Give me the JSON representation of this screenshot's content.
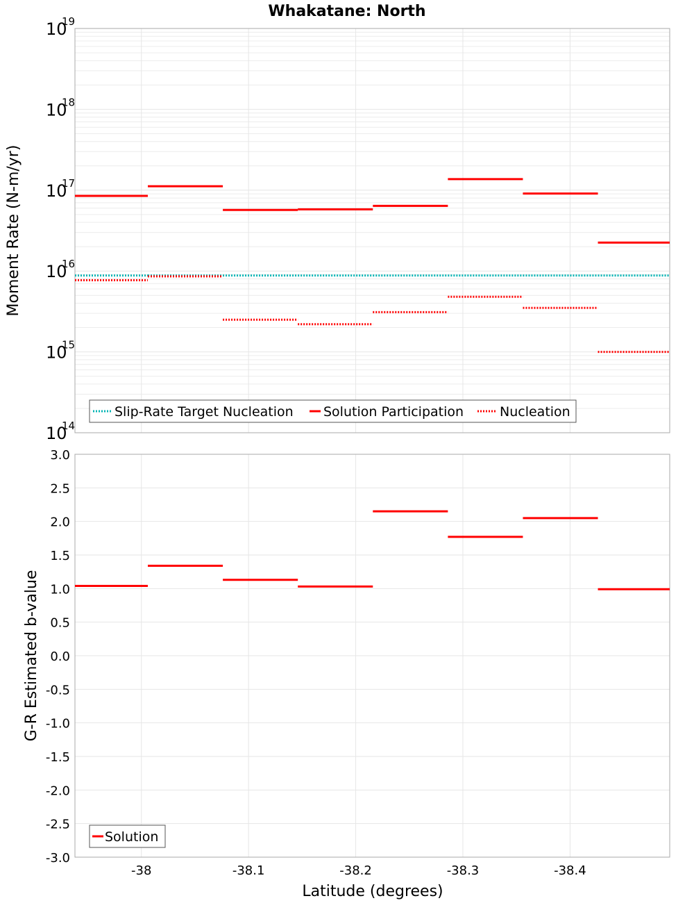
{
  "title": "Whakatane: North",
  "x_axis_label": "Latitude (degrees)",
  "colors": {
    "target": "#00b4b4",
    "solution": "#ff0000",
    "grid": "#e6e6e6",
    "frame": "#aaaaaa"
  },
  "chart_data": [
    {
      "type": "line",
      "panel": "top",
      "ylabel": "Moment Rate (N-m/yr)",
      "yscale": "log",
      "ylim": [
        100000000000000.0,
        1e+19
      ],
      "y_ticks": [
        {
          "value": 100000000000000.0,
          "base": "10",
          "exp": "14"
        },
        {
          "value": 1000000000000000.0,
          "base": "10",
          "exp": "15"
        },
        {
          "value": 1e+16,
          "base": "10",
          "exp": "16"
        },
        {
          "value": 1e+17,
          "base": "10",
          "exp": "17"
        },
        {
          "value": 1e+18,
          "base": "10",
          "exp": "18"
        },
        {
          "value": 1e+19,
          "base": "10",
          "exp": "19"
        }
      ],
      "xlim": [
        -37.938,
        -38.493
      ],
      "x_ticks": [
        "-38",
        "-38.1",
        "-38.2",
        "-38.3",
        "-38.4"
      ],
      "x_tick_values": [
        -38.0,
        -38.1,
        -38.2,
        -38.3,
        -38.4
      ],
      "grid": true,
      "legend_position": "bottom-left",
      "series": [
        {
          "name": "Slip-Rate Target Nucleation",
          "style": "dotted",
          "color": "#00b4b4",
          "segments": [
            {
              "x": [
                -37.938,
                -38.006
              ],
              "y": 8800000000000000.0
            },
            {
              "x": [
                -38.006,
                -38.076
              ],
              "y": 8800000000000000.0
            },
            {
              "x": [
                -38.076,
                -38.146
              ],
              "y": 8800000000000000.0
            },
            {
              "x": [
                -38.146,
                -38.216
              ],
              "y": 8800000000000000.0
            },
            {
              "x": [
                -38.216,
                -38.286
              ],
              "y": 8800000000000000.0
            },
            {
              "x": [
                -38.286,
                -38.356
              ],
              "y": 8800000000000000.0
            },
            {
              "x": [
                -38.356,
                -38.426
              ],
              "y": 8800000000000000.0
            },
            {
              "x": [
                -38.426,
                -38.493
              ],
              "y": 8800000000000000.0
            }
          ]
        },
        {
          "name": "Solution Participation",
          "style": "solid",
          "color": "#ff0000",
          "segments": [
            {
              "x": [
                -37.938,
                -38.006
              ],
              "y": 8.5e+16
            },
            {
              "x": [
                -38.006,
                -38.076
              ],
              "y": 1.12e+17
            },
            {
              "x": [
                -38.076,
                -38.146
              ],
              "y": 5.7e+16
            },
            {
              "x": [
                -38.146,
                -38.216
              ],
              "y": 5.8e+16
            },
            {
              "x": [
                -38.216,
                -38.286
              ],
              "y": 6.4e+16
            },
            {
              "x": [
                -38.286,
                -38.356
              ],
              "y": 1.37e+17
            },
            {
              "x": [
                -38.356,
                -38.426
              ],
              "y": 9.1e+16
            },
            {
              "x": [
                -38.426,
                -38.493
              ],
              "y": 2.25e+16
            }
          ]
        },
        {
          "name": "Nucleation",
          "style": "dotted",
          "color": "#ff0000",
          "segments": [
            {
              "x": [
                -37.938,
                -38.006
              ],
              "y": 7700000000000000.0
            },
            {
              "x": [
                -38.006,
                -38.076
              ],
              "y": 8600000000000000.0
            },
            {
              "x": [
                -38.076,
                -38.146
              ],
              "y": 2500000000000000.0
            },
            {
              "x": [
                -38.146,
                -38.216
              ],
              "y": 2200000000000000.0
            },
            {
              "x": [
                -38.216,
                -38.286
              ],
              "y": 3100000000000000.0
            },
            {
              "x": [
                -38.286,
                -38.356
              ],
              "y": 4800000000000000.0
            },
            {
              "x": [
                -38.356,
                -38.426
              ],
              "y": 3500000000000000.0
            },
            {
              "x": [
                -38.426,
                -38.493
              ],
              "y": 1000000000000000.0
            }
          ]
        }
      ]
    },
    {
      "type": "line",
      "panel": "bottom",
      "ylabel": "G-R Estimated b-value",
      "yscale": "linear",
      "ylim": [
        -3.0,
        3.0
      ],
      "y_ticks": [
        "-3.0",
        "-2.5",
        "-2.0",
        "-1.5",
        "-1.0",
        "-0.5",
        "0.0",
        "0.5",
        "1.0",
        "1.5",
        "2.0",
        "2.5",
        "3.0"
      ],
      "xlim": [
        -37.938,
        -38.493
      ],
      "x_ticks": [
        "-38",
        "-38.1",
        "-38.2",
        "-38.3",
        "-38.4"
      ],
      "x_tick_values": [
        -38.0,
        -38.1,
        -38.2,
        -38.3,
        -38.4
      ],
      "grid": true,
      "legend_position": "bottom-left",
      "series": [
        {
          "name": "Solution",
          "style": "solid",
          "color": "#ff0000",
          "segments": [
            {
              "x": [
                -37.938,
                -38.006
              ],
              "y": 1.04
            },
            {
              "x": [
                -38.006,
                -38.076
              ],
              "y": 1.34
            },
            {
              "x": [
                -38.076,
                -38.146
              ],
              "y": 1.13
            },
            {
              "x": [
                -38.146,
                -38.216
              ],
              "y": 1.03
            },
            {
              "x": [
                -38.216,
                -38.286
              ],
              "y": 2.15
            },
            {
              "x": [
                -38.286,
                -38.356
              ],
              "y": 1.77
            },
            {
              "x": [
                -38.356,
                -38.426
              ],
              "y": 2.05
            },
            {
              "x": [
                -38.426,
                -38.493
              ],
              "y": 0.99
            }
          ]
        }
      ]
    }
  ]
}
